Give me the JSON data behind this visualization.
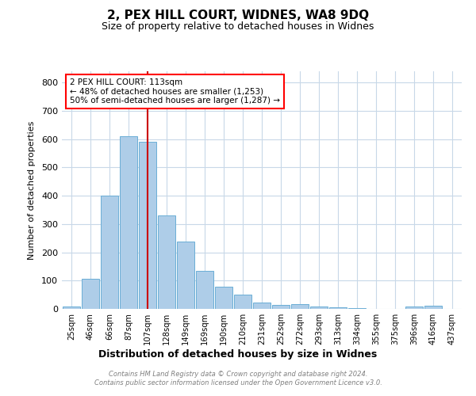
{
  "title1": "2, PEX HILL COURT, WIDNES, WA8 9DQ",
  "title2": "Size of property relative to detached houses in Widnes",
  "xlabel": "Distribution of detached houses by size in Widnes",
  "ylabel": "Number of detached properties",
  "categories": [
    "25sqm",
    "46sqm",
    "66sqm",
    "87sqm",
    "107sqm",
    "128sqm",
    "149sqm",
    "169sqm",
    "190sqm",
    "210sqm",
    "231sqm",
    "252sqm",
    "272sqm",
    "293sqm",
    "313sqm",
    "334sqm",
    "355sqm",
    "375sqm",
    "396sqm",
    "416sqm",
    "437sqm"
  ],
  "values": [
    8,
    107,
    400,
    610,
    590,
    330,
    237,
    135,
    78,
    50,
    22,
    15,
    18,
    8,
    5,
    2,
    0,
    0,
    8,
    10,
    0
  ],
  "bar_color": "#aecde8",
  "bar_edgecolor": "#6aaed6",
  "vline_index": 4,
  "vline_color": "#cc0000",
  "ann_line1": "2 PEX HILL COURT: 113sqm",
  "ann_line2": "← 48% of detached houses are smaller (1,253)",
  "ann_line3": "50% of semi-detached houses are larger (1,287) →",
  "footer": "Contains HM Land Registry data © Crown copyright and database right 2024.\nContains public sector information licensed under the Open Government Licence v3.0.",
  "bg_color": "#ffffff",
  "grid_color": "#c8d8e8",
  "ylim": [
    0,
    840
  ],
  "yticks": [
    0,
    100,
    200,
    300,
    400,
    500,
    600,
    700,
    800
  ]
}
